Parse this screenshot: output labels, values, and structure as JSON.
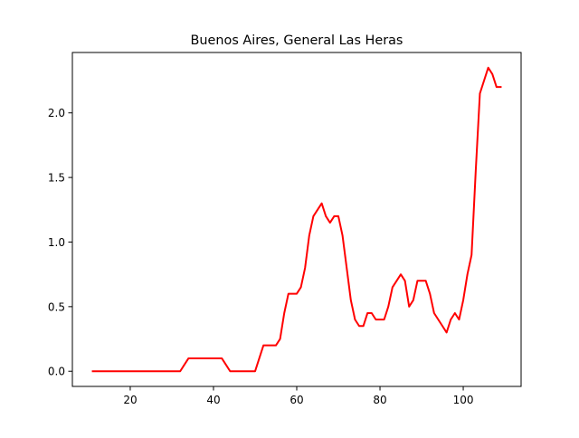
{
  "chart_data": {
    "type": "line",
    "title": "Buenos Aires, General Las Heras",
    "xlabel": "",
    "ylabel": "",
    "xlim": [
      6.1,
      113.9
    ],
    "ylim": [
      -0.1175,
      2.4675
    ],
    "x_ticks": [
      20,
      40,
      60,
      80,
      100
    ],
    "y_ticks": [
      0.0,
      0.5,
      1.0,
      1.5,
      2.0
    ],
    "x_tick_labels": [
      "20",
      "40",
      "60",
      "80",
      "100"
    ],
    "y_tick_labels": [
      "0.0",
      "0.5",
      "1.0",
      "1.5",
      "2.0"
    ],
    "grid": false,
    "series": [
      {
        "color": "#ff0000",
        "x": [
          11,
          12,
          13,
          14,
          15,
          16,
          17,
          18,
          19,
          20,
          21,
          22,
          23,
          24,
          25,
          26,
          27,
          28,
          29,
          30,
          31,
          32,
          33,
          34,
          35,
          36,
          37,
          38,
          39,
          40,
          41,
          42,
          43,
          44,
          45,
          46,
          47,
          48,
          49,
          50,
          51,
          52,
          53,
          54,
          55,
          56,
          57,
          58,
          59,
          60,
          61,
          62,
          63,
          64,
          65,
          66,
          67,
          68,
          69,
          70,
          71,
          72,
          73,
          74,
          75,
          76,
          77,
          78,
          79,
          80,
          81,
          82,
          83,
          84,
          85,
          86,
          87,
          88,
          89,
          90,
          91,
          92,
          93,
          94,
          95,
          96,
          97,
          98,
          99,
          100,
          101,
          102,
          103,
          104,
          105,
          106,
          107,
          108,
          109
        ],
        "values": [
          0,
          0,
          0,
          0,
          0,
          0,
          0,
          0,
          0,
          0,
          0,
          0,
          0,
          0,
          0,
          0,
          0,
          0,
          0,
          0,
          0,
          0,
          0.05,
          0.1,
          0.1,
          0.1,
          0.1,
          0.1,
          0.1,
          0.1,
          0.1,
          0.1,
          0.05,
          0,
          0,
          0,
          0,
          0,
          0,
          0,
          0.1,
          0.2,
          0.2,
          0.2,
          0.2,
          0.25,
          0.45,
          0.6,
          0.6,
          0.6,
          0.65,
          0.8,
          1.05,
          1.2,
          1.25,
          1.3,
          1.2,
          1.15,
          1.2,
          1.2,
          1.05,
          0.8,
          0.55,
          0.4,
          0.35,
          0.35,
          0.45,
          0.45,
          0.4,
          0.4,
          0.4,
          0.5,
          0.65,
          0.7,
          0.75,
          0.7,
          0.5,
          0.55,
          0.7,
          0.7,
          0.7,
          0.6,
          0.45,
          0.4,
          0.35,
          0.3,
          0.4,
          0.45,
          0.4,
          0.55,
          0.75,
          0.9,
          1.55,
          2.15,
          2.25,
          2.35,
          2.3,
          2.2,
          2.2
        ]
      }
    ]
  }
}
